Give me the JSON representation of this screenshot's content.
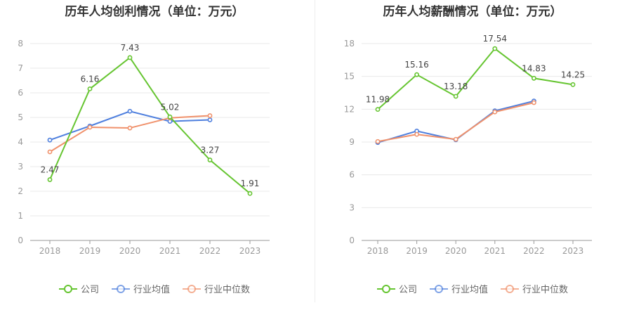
{
  "chart_data": [
    {
      "type": "line",
      "title": "历年人均创利情况（单位：万元）",
      "categories": [
        "2018",
        "2019",
        "2020",
        "2021",
        "2022",
        "2023"
      ],
      "ylim": [
        0,
        8
      ],
      "yticks": [
        "0",
        "1",
        "2",
        "3",
        "4",
        "5",
        "6",
        "7",
        "8"
      ],
      "grid": true,
      "legend_position": "bottom",
      "series": [
        {
          "name": "公司",
          "color": "#66c531",
          "values": [
            2.47,
            6.16,
            7.43,
            5.02,
            3.27,
            1.91
          ],
          "labels": [
            "2.47",
            "6.16",
            "7.43",
            "5.02",
            "3.27",
            "1.91"
          ]
        },
        {
          "name": "行业均值",
          "color": "#4e7fde",
          "values": [
            4.08,
            4.65,
            5.25,
            4.84,
            4.9,
            null
          ],
          "labels": []
        },
        {
          "name": "行业中位数",
          "color": "#f0916b",
          "values": [
            3.6,
            4.6,
            4.57,
            4.98,
            5.07,
            null
          ],
          "labels": []
        }
      ]
    },
    {
      "type": "line",
      "title": "历年人均薪酬情况（单位：万元）",
      "categories": [
        "2018",
        "2019",
        "2020",
        "2021",
        "2022",
        "2023"
      ],
      "ylim": [
        0,
        18
      ],
      "yticks": [
        "0",
        "3",
        "6",
        "9",
        "12",
        "15",
        "18"
      ],
      "grid": true,
      "legend_position": "bottom",
      "series": [
        {
          "name": "公司",
          "color": "#66c531",
          "values": [
            11.98,
            15.16,
            13.18,
            17.54,
            14.83,
            14.25
          ],
          "labels": [
            "11.98",
            "15.16",
            "13.18",
            "17.54",
            "14.83",
            "14.25"
          ]
        },
        {
          "name": "行业均值",
          "color": "#4e7fde",
          "values": [
            8.95,
            10.0,
            9.2,
            11.85,
            12.75,
            null
          ],
          "labels": []
        },
        {
          "name": "行业中位数",
          "color": "#f0916b",
          "values": [
            9.05,
            9.7,
            9.25,
            11.75,
            12.6,
            null
          ],
          "labels": []
        }
      ]
    }
  ]
}
